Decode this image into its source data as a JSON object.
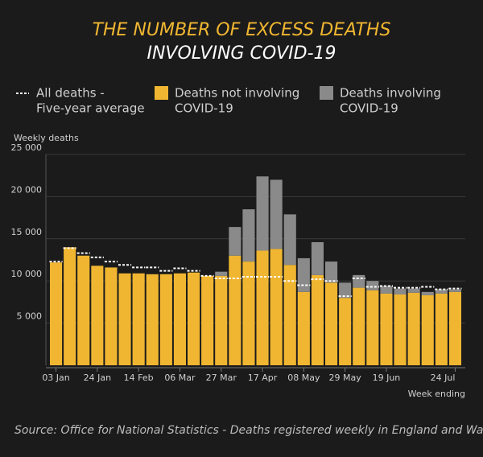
{
  "chart_data": {
    "type": "bar",
    "title": "THE NUMBER OF EXCESS DEATHS",
    "subtitle": "INVOLVING COVID-19",
    "y_label": "Weekly deaths",
    "x_label": "Week ending",
    "source": "Source: Office for National Statistics - Deaths registered weekly in England and Wales",
    "stacked": true,
    "categories": [
      "03 Jan",
      null,
      null,
      "24 Jan",
      null,
      null,
      "14 Feb",
      null,
      null,
      "06 Mar",
      null,
      null,
      "27 Mar",
      null,
      null,
      "17 Apr",
      null,
      null,
      "08 May",
      null,
      null,
      "29 May",
      null,
      null,
      "19 Jun",
      null,
      null,
      null,
      null,
      "24 Jul"
    ],
    "series": [
      {
        "name": [
          "Deaths not involving",
          "COVID-19"
        ],
        "color": "#f0b631",
        "values": [
          12200,
          14000,
          13000,
          11800,
          11600,
          10900,
          10900,
          10800,
          10800,
          10900,
          11000,
          10600,
          10600,
          13000,
          12300,
          13600,
          13800,
          11900,
          8700,
          10700,
          9800,
          8000,
          9200,
          8900,
          8500,
          8400,
          8600,
          8300,
          8500,
          8700
        ]
      },
      {
        "name": [
          "Deaths involving",
          "COVID-19"
        ],
        "color": "#8a8a8a",
        "values": [
          0,
          0,
          0,
          0,
          0,
          0,
          0,
          0,
          0,
          0,
          0,
          0,
          500,
          3400,
          6200,
          8800,
          8200,
          6000,
          4000,
          3900,
          2500,
          1800,
          1500,
          1100,
          900,
          700,
          500,
          400,
          500,
          300
        ]
      },
      {
        "name": [
          "All deaths -",
          "Five-year average"
        ],
        "color": "#ffffff",
        "type": "line",
        "values": [
          12300,
          13900,
          13300,
          12800,
          12300,
          11900,
          11600,
          11600,
          11200,
          11500,
          11200,
          10600,
          10300,
          10300,
          10500,
          10500,
          10500,
          10000,
          9500,
          10200,
          10000,
          8200,
          10300,
          9300,
          9400,
          9200,
          9200,
          9300,
          9000,
          9100
        ]
      }
    ],
    "ylim": [
      0,
      25000
    ],
    "yticks": [
      {
        "value": 5000,
        "label": "5 000"
      },
      {
        "value": 10000,
        "label": "10 000"
      },
      {
        "value": 15000,
        "label": "15 000"
      },
      {
        "value": 20000,
        "label": "20 000"
      },
      {
        "value": 25000,
        "label": "25 000"
      }
    ],
    "grid": true
  }
}
